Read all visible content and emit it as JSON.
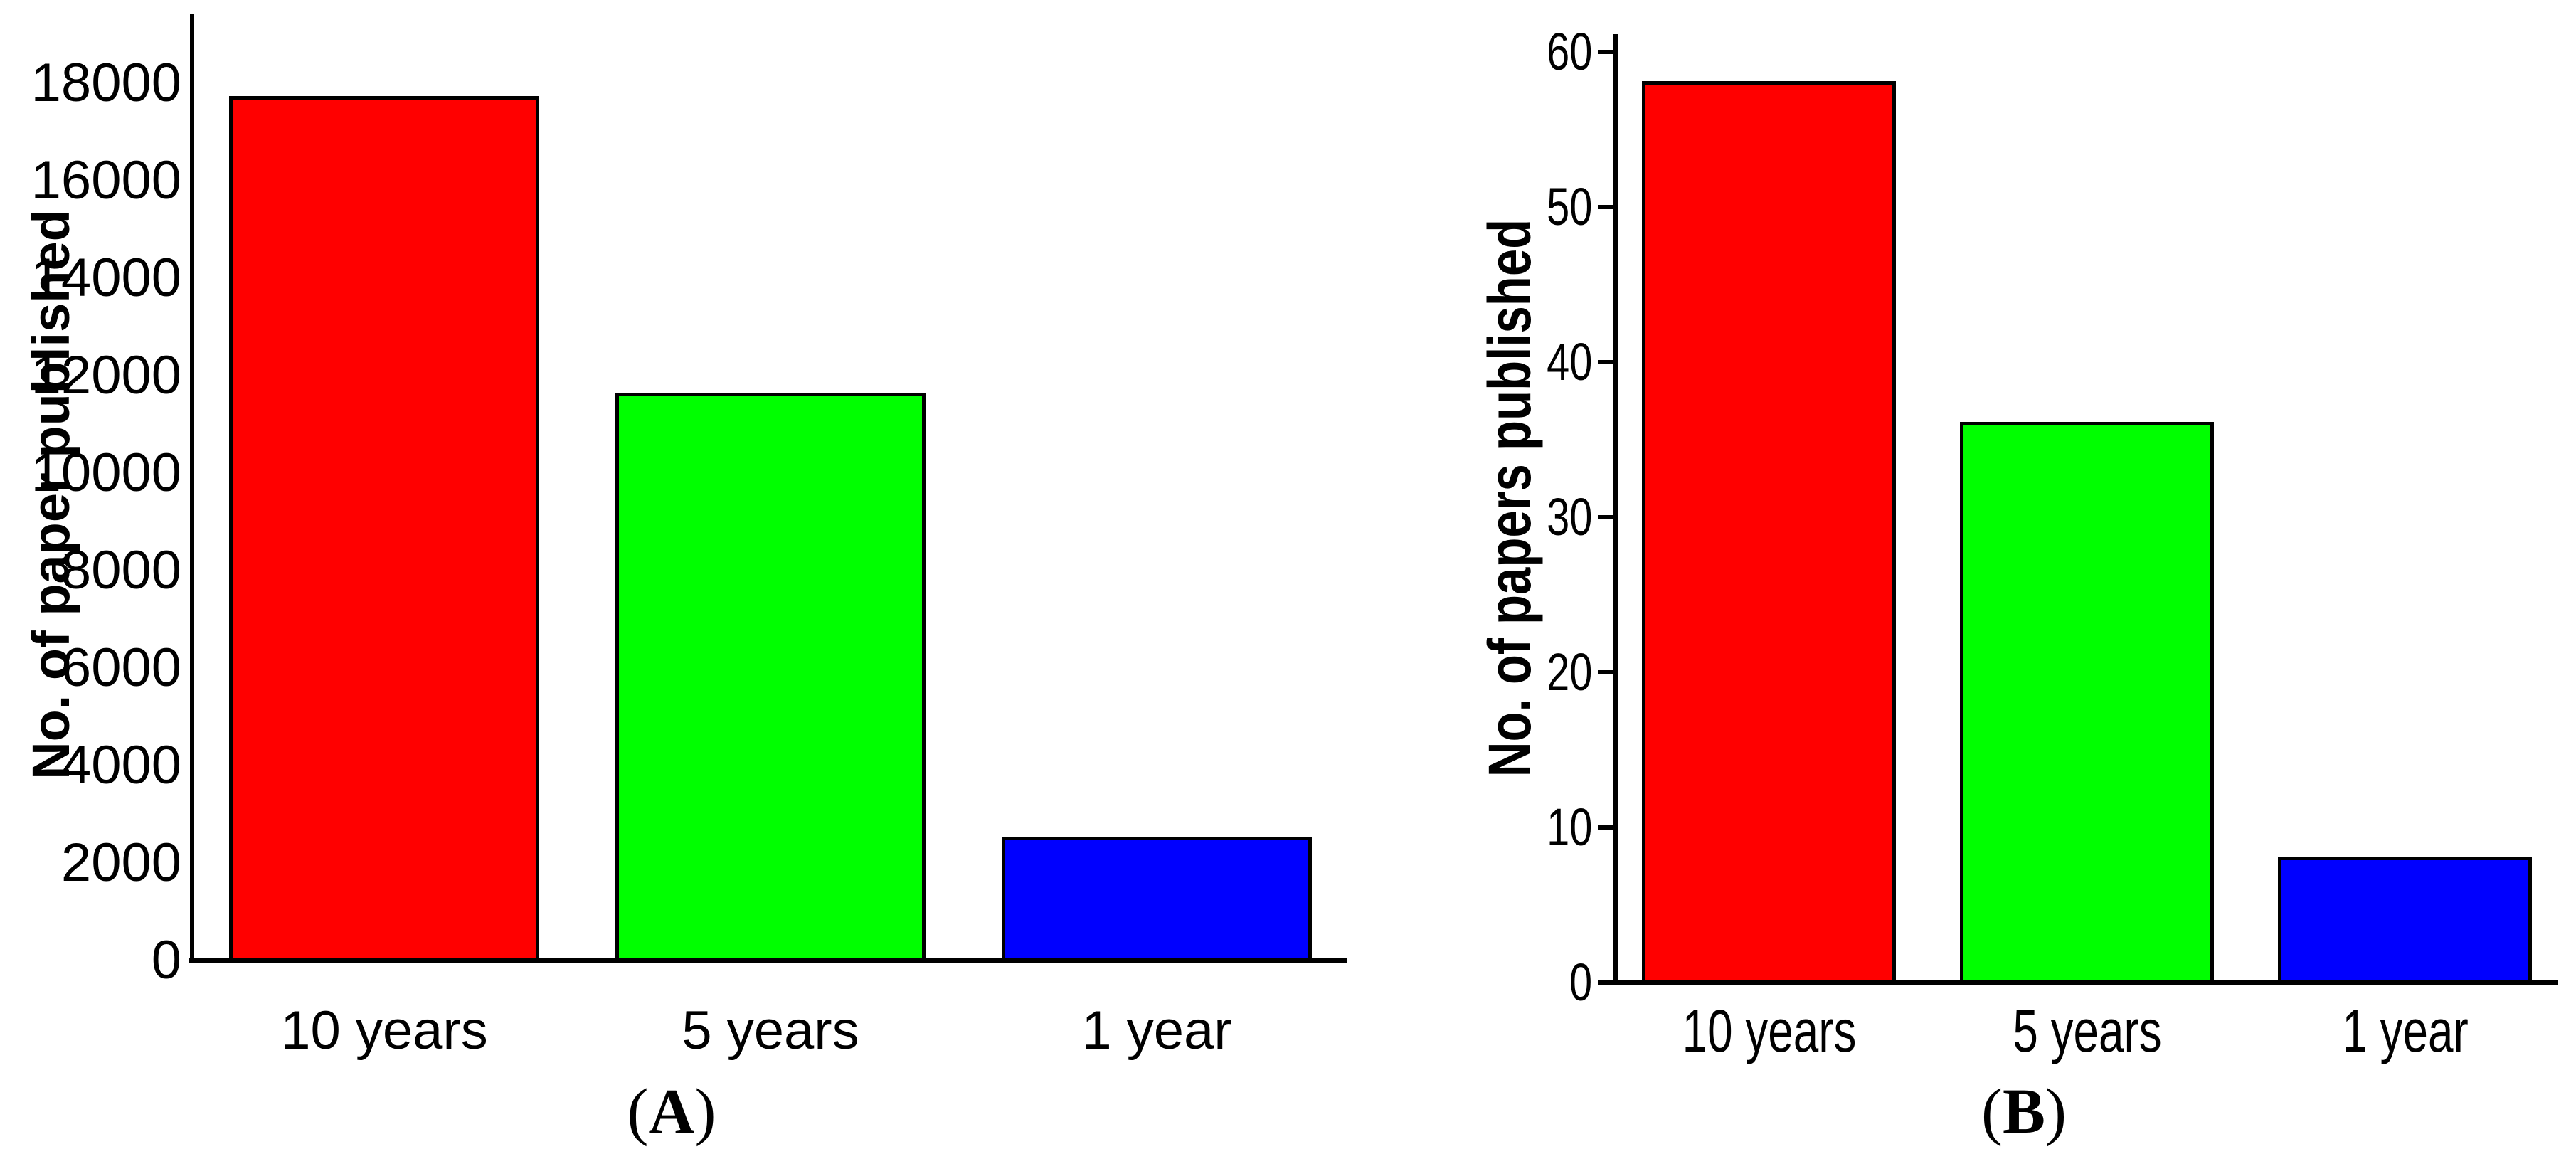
{
  "figure_title": "",
  "panels": [
    {
      "pre": "(",
      "letter": "A",
      "post": ")"
    },
    {
      "pre": "(",
      "letter": "B",
      "post": ")"
    }
  ],
  "colors": {
    "bar_red": "#FF0000",
    "bar_green": "#00FF00",
    "bar_blue": "#0000FF",
    "axis": "#000000",
    "background": "#FFFFFF"
  },
  "chart_data": [
    {
      "type": "bar",
      "panel": "A",
      "title": "",
      "xlabel": "",
      "ylabel": "No. of paper published",
      "categories": [
        "10 years",
        "5 years",
        "1 year"
      ],
      "values": [
        17700,
        11600,
        2500
      ],
      "bar_colors": [
        "#FF0000",
        "#00FF00",
        "#0000FF"
      ],
      "ylim": [
        0,
        18000
      ],
      "yticks": [
        0,
        2000,
        4000,
        6000,
        8000,
        10000,
        12000,
        14000,
        16000,
        18000
      ],
      "grid": false,
      "legend": null
    },
    {
      "type": "bar",
      "panel": "B",
      "title": "",
      "xlabel": "",
      "ylabel": "No. of papers published",
      "categories": [
        "10 years",
        "5 years",
        "1 year"
      ],
      "values": [
        58,
        36,
        8
      ],
      "bar_colors": [
        "#FF0000",
        "#00FF00",
        "#0000FF"
      ],
      "ylim": [
        0,
        60
      ],
      "yticks": [
        0,
        10,
        20,
        30,
        40,
        50,
        60
      ],
      "grid": false,
      "legend": null
    }
  ]
}
